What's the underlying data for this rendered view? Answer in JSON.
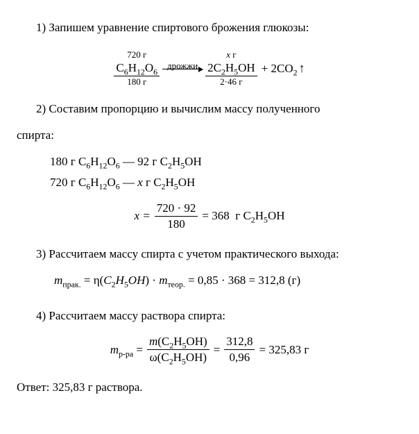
{
  "step1": {
    "text": "1) Запишем уравнение спиртового брожения глюкозы:",
    "equation": {
      "left_top": "720 г",
      "left_formula_html": "C<span class='sub'>6</span>H<span class='sub'>12</span>O<span class='sub'>6</span>",
      "left_bottom": "180 г",
      "arrow_label": "дрожжи",
      "right_top_html": "<span class='italic'>x</span> г",
      "right_formula_html": "2C<span class='sub'>2</span>H<span class='sub'>5</span>OH",
      "right_bottom": "2·46 г",
      "plus_html": "+ 2CO<span class='sub'>2</span>",
      "arrow_up": "↑"
    }
  },
  "step2": {
    "text": "2) Составим пропорцию и вычислим массу полученного",
    "text2": "спирта:",
    "line1_html": "180 г C<span class='sub'>6</span>H<span class='sub'>12</span>O<span class='sub'>6</span> — 92 г C<span class='sub'>2</span>H<span class='sub'>5</span>OH",
    "line2_html": "720 г C<span class='sub'>6</span>H<span class='sub'>12</span>O<span class='sub'>6</span> — <span class='italic'>x</span> г C<span class='sub'>2</span>H<span class='sub'>5</span>OH",
    "calc": {
      "lhs": "x =",
      "num": "720 · 92",
      "den": "180",
      "result_html": "= 368&nbsp;&nbsp;г C<span class='sub'>2</span>H<span class='sub'>5</span>OH"
    }
  },
  "step3": {
    "text": "3) Рассчитаем массу спирта с учетом практического выхода:",
    "calc_html": "<span class='italic'>m</span><span class='sub'>прак.</span> = η(<span class='italic'>C</span><span class='sub'>2</span><span class='italic'>H</span><span class='sub'>5</span><span class='italic'>OH</span>) · <span class='italic'>m</span><span class='sub'>теор.</span> = 0,85 · 368 = 312,8 (г)"
  },
  "step4": {
    "text": "4) Рассчитаем массу раствора спирта:",
    "calc": {
      "lhs_html": "<span class='italic'>m</span><span class='sub'>р-ра</span> =",
      "num1_html": "<span class='italic'>m</span>(C<span class='sub'>2</span>H<span class='sub'>5</span>OH)",
      "den1_html": "ω(C<span class='sub'>2</span>H<span class='sub'>5</span>OH)",
      "num2": "312,8",
      "den2": "0,96",
      "result": "= 325,83 г"
    }
  },
  "answer": "Ответ: 325,83 г раствора."
}
